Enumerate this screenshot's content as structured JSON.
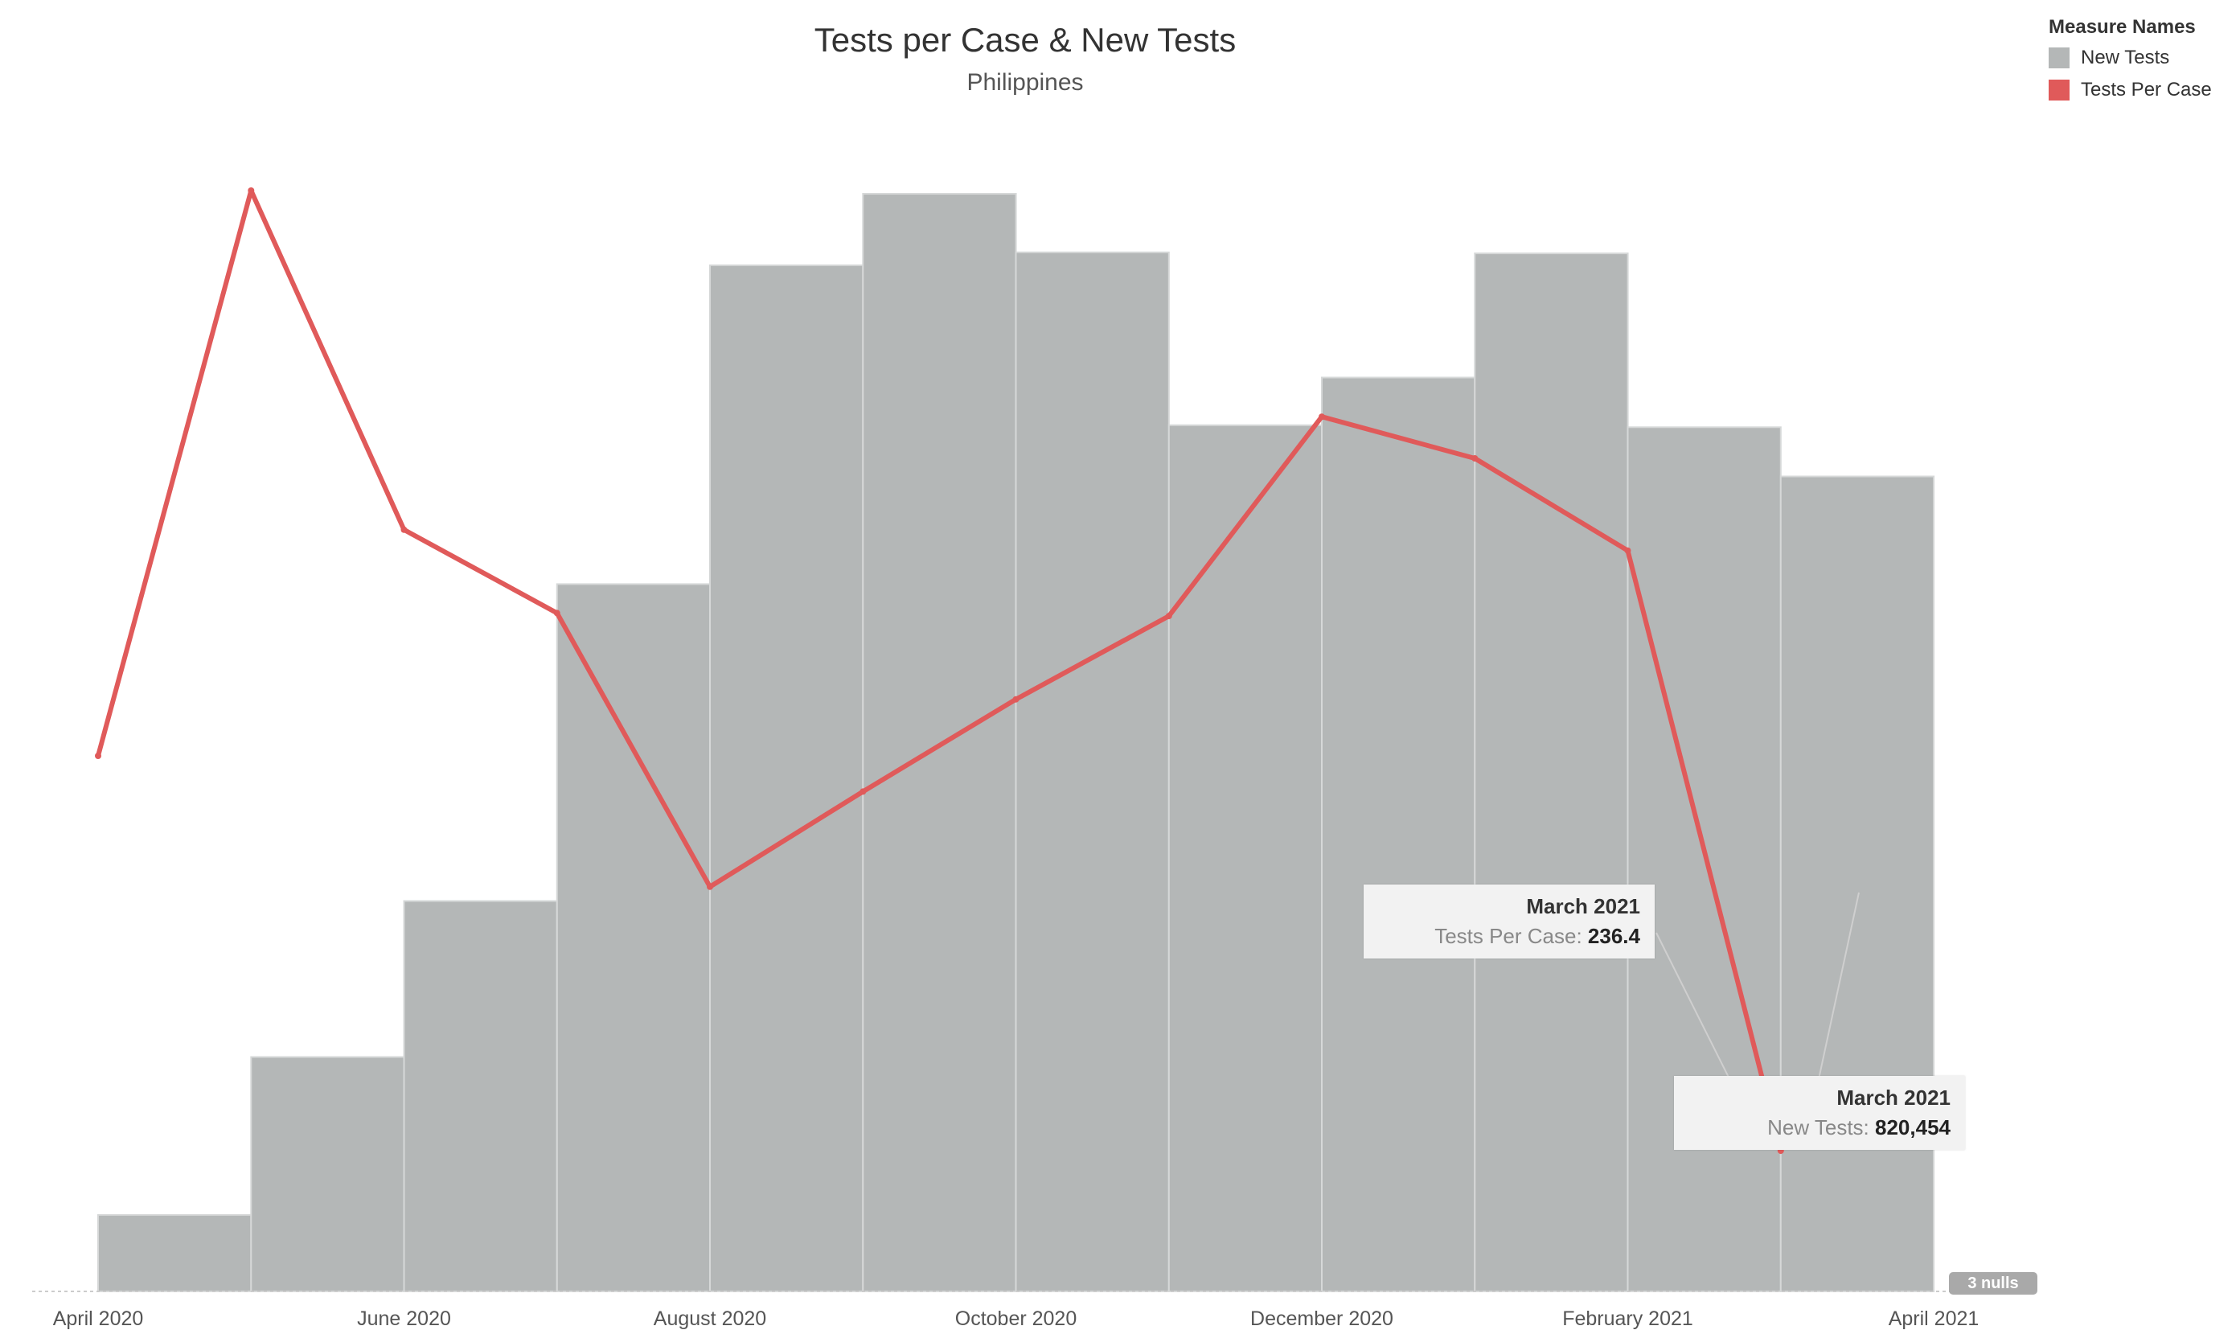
{
  "chart_data": {
    "type": "bar",
    "title": "Tests per Case & New Tests",
    "subtitle": "Philippines",
    "x_tick_labels": [
      "April 2020",
      "June 2020",
      "August 2020",
      "October 2020",
      "December 2020",
      "February 2021",
      "April 2021"
    ],
    "series": [
      {
        "name": "New Tests",
        "type": "bar",
        "color": "#b4b7b7",
        "x": [
          "2020-04",
          "2020-05",
          "2020-06",
          "2020-07",
          "2020-08",
          "2020-09",
          "2020-10",
          "2020-11",
          "2020-12",
          "2021-01",
          "2021-02",
          "2021-03"
        ],
        "values": [
          77000,
          236000,
          393000,
          712000,
          1033000,
          1105000,
          1046000,
          872000,
          920000,
          1045000,
          870000,
          820454
        ]
      },
      {
        "name": "Tests Per Case",
        "type": "line",
        "color": "#e05a5a",
        "x": [
          "2020-04",
          "2020-05",
          "2020-06",
          "2020-07",
          "2020-08",
          "2020-09",
          "2020-10",
          "2020-11",
          "2020-12",
          "2021-01",
          "2021-02",
          "2021-03"
        ],
        "values": [
          900,
          1850,
          1280,
          1140,
          680,
          840,
          995,
          1135,
          1470,
          1400,
          1245,
          236.4
        ]
      }
    ],
    "legend": {
      "title": "Measure Names",
      "placement": "top-right"
    },
    "grid": false
  },
  "tooltips": [
    {
      "header": "March 2021",
      "label": "Tests Per Case: ",
      "value": "236.4"
    },
    {
      "header": "March 2021",
      "label": "New Tests: ",
      "value": "820,454"
    }
  ],
  "nulls_badge": "3 nulls"
}
